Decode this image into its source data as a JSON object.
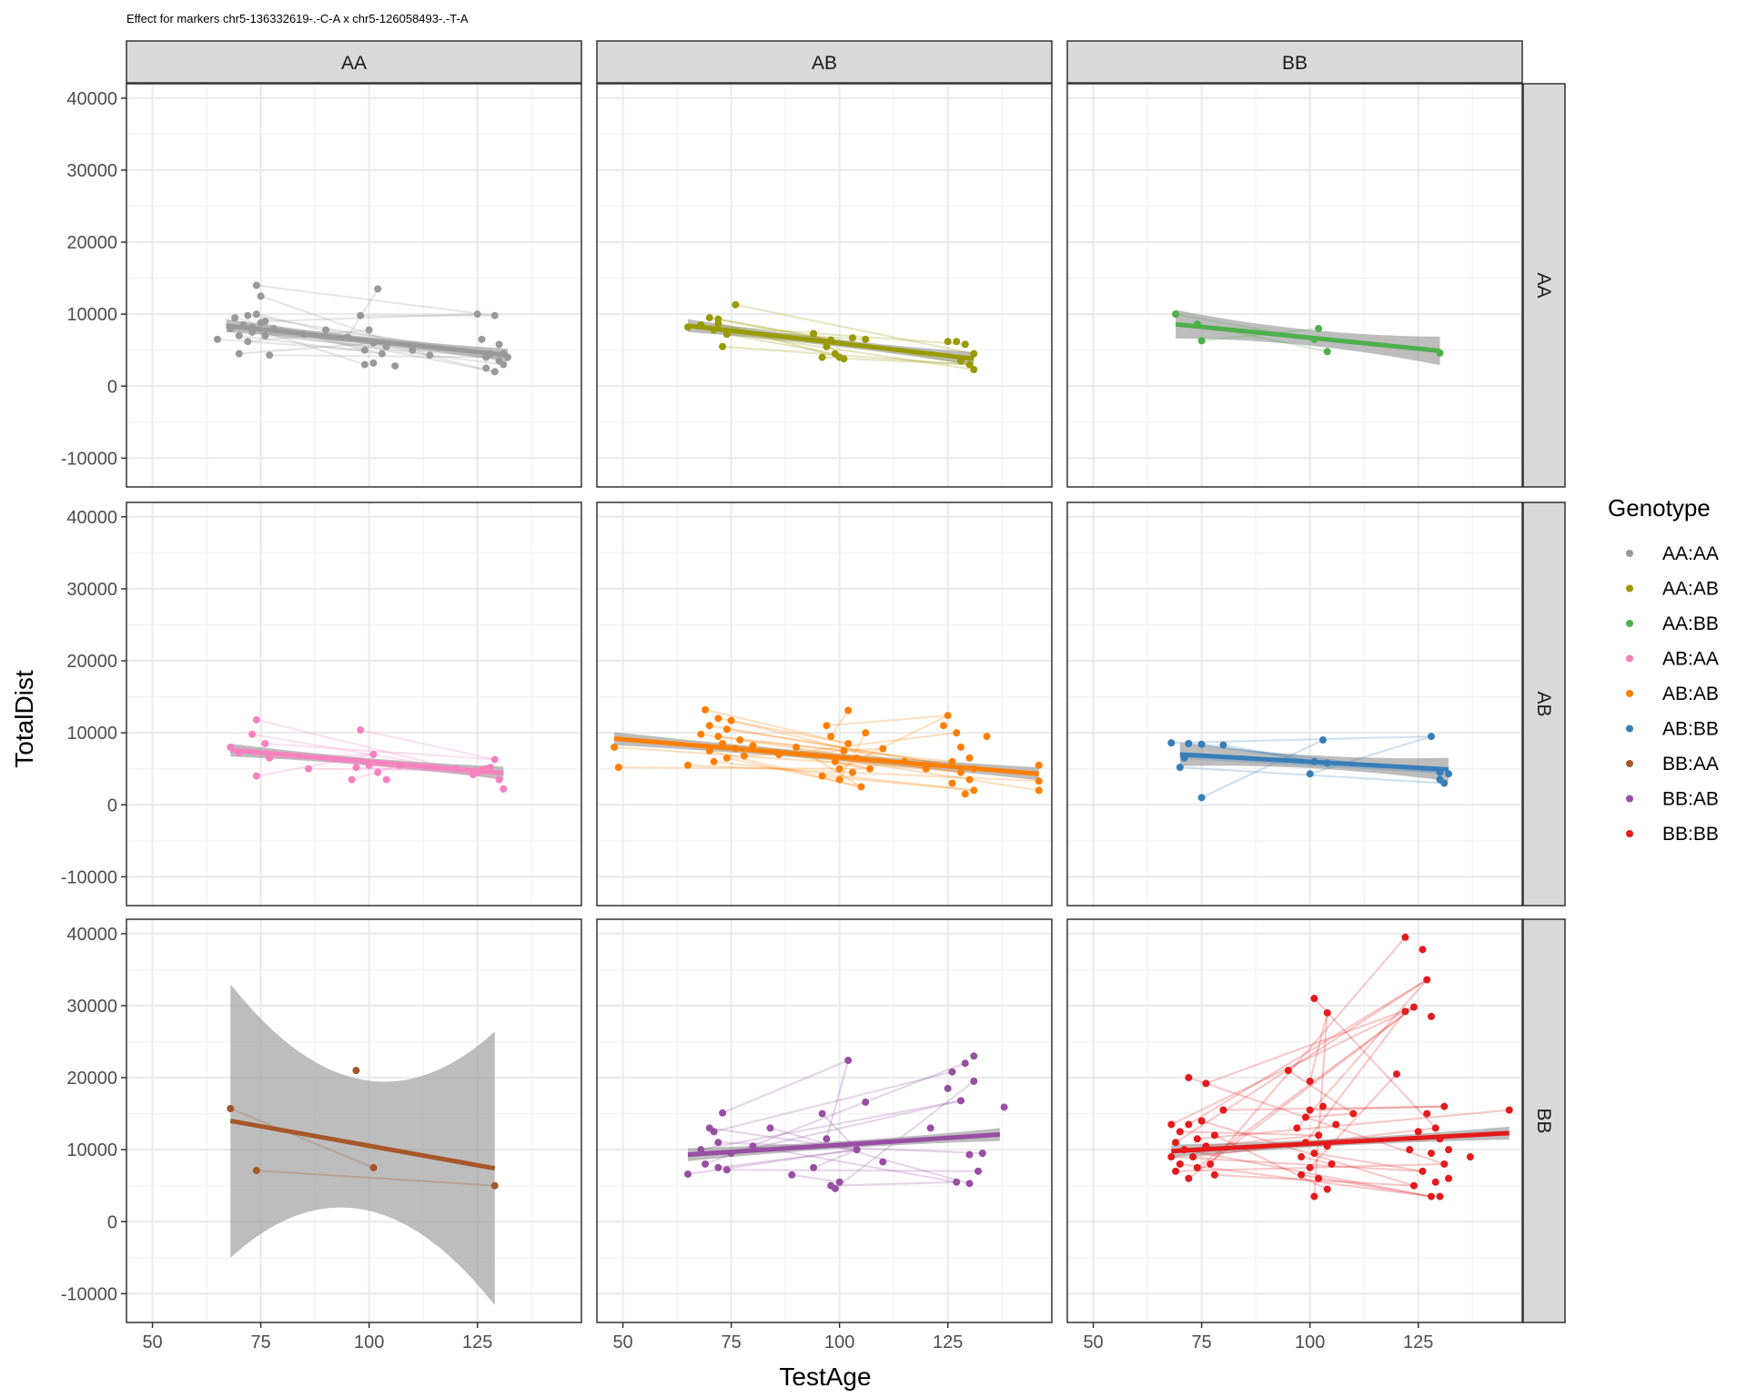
{
  "chart_data": {
    "type": "scatter",
    "title": "Effect for markers chr5-136332619-.-C-A x chr5-126058493-.-T-A",
    "xlabel": "TestAge",
    "ylabel": "TotalDist",
    "xlim": [
      44,
      149
    ],
    "ylim": [
      -14000,
      42000
    ],
    "x_ticks": [
      50,
      75,
      100,
      125
    ],
    "y_ticks": [
      -10000,
      0,
      10000,
      20000,
      30000,
      40000
    ],
    "grid": true,
    "legend": {
      "title": "Genotype",
      "position": "right"
    },
    "col_facets": [
      "AA",
      "AB",
      "BB"
    ],
    "row_facets": [
      "AA",
      "AB",
      "BB"
    ],
    "series": [
      {
        "name": "AA:AA",
        "color": "#999999",
        "row": 0,
        "col": 0,
        "points": [
          [
            65,
            6500
          ],
          [
            68,
            8000
          ],
          [
            69,
            9500
          ],
          [
            70,
            7000
          ],
          [
            71,
            8500
          ],
          [
            72,
            9800
          ],
          [
            72,
            6200
          ],
          [
            73,
            8200
          ],
          [
            74,
            14000
          ],
          [
            74,
            10000
          ],
          [
            75,
            12500
          ],
          [
            75,
            8800
          ],
          [
            76,
            9000
          ],
          [
            77,
            4300
          ],
          [
            78,
            8000
          ],
          [
            70,
            4500
          ],
          [
            73,
            7500
          ],
          [
            76,
            7000
          ],
          [
            85,
            7200
          ],
          [
            90,
            7800
          ],
          [
            95,
            6800
          ],
          [
            98,
            9800
          ],
          [
            99,
            5000
          ],
          [
            99,
            3000
          ],
          [
            100,
            7800
          ],
          [
            101,
            3200
          ],
          [
            101,
            6000
          ],
          [
            102,
            13500
          ],
          [
            103,
            4500
          ],
          [
            104,
            5500
          ],
          [
            106,
            2800
          ],
          [
            110,
            5000
          ],
          [
            114,
            4300
          ],
          [
            125,
            10000
          ],
          [
            126,
            6500
          ],
          [
            127,
            2500
          ],
          [
            127,
            4000
          ],
          [
            128,
            4500
          ],
          [
            129,
            9800
          ],
          [
            129,
            2000
          ],
          [
            130,
            5800
          ],
          [
            130,
            3500
          ],
          [
            131,
            4500
          ],
          [
            131,
            3000
          ],
          [
            132,
            4000
          ]
        ],
        "fit": {
          "x": [
            67,
            132
          ],
          "y": [
            8400,
            4300
          ]
        }
      },
      {
        "name": "AA:AB",
        "color": "#999900",
        "row": 0,
        "col": 1,
        "points": [
          [
            65,
            8200
          ],
          [
            68,
            8500
          ],
          [
            70,
            9500
          ],
          [
            71,
            7800
          ],
          [
            72,
            9300
          ],
          [
            72,
            8700
          ],
          [
            73,
            5500
          ],
          [
            74,
            7200
          ],
          [
            76,
            11300
          ],
          [
            94,
            7300
          ],
          [
            96,
            4000
          ],
          [
            97,
            5500
          ],
          [
            98,
            6400
          ],
          [
            99,
            4500
          ],
          [
            100,
            4000
          ],
          [
            101,
            3800
          ],
          [
            103,
            6700
          ],
          [
            106,
            6500
          ],
          [
            125,
            6200
          ],
          [
            127,
            6200
          ],
          [
            128,
            3500
          ],
          [
            129,
            5800
          ],
          [
            130,
            3000
          ],
          [
            131,
            2300
          ],
          [
            131,
            4500
          ]
        ],
        "fit": {
          "x": [
            65,
            131
          ],
          "y": [
            8400,
            3800
          ]
        }
      },
      {
        "name": "AA:BB",
        "color": "#4daf4a",
        "row": 0,
        "col": 2,
        "points": [
          [
            69,
            10000
          ],
          [
            74,
            8600
          ],
          [
            75,
            6300
          ],
          [
            101,
            6500
          ],
          [
            102,
            8000
          ],
          [
            104,
            4800
          ],
          [
            130,
            4600
          ]
        ],
        "fit": {
          "x": [
            69,
            130
          ],
          "y": [
            8600,
            4900
          ]
        }
      },
      {
        "name": "AB:AA",
        "color": "#f781bf",
        "row": 1,
        "col": 0,
        "points": [
          [
            68,
            8000
          ],
          [
            70,
            7200
          ],
          [
            73,
            9800
          ],
          [
            74,
            11800
          ],
          [
            74,
            4000
          ],
          [
            76,
            8500
          ],
          [
            77,
            6500
          ],
          [
            86,
            5000
          ],
          [
            96,
            3500
          ],
          [
            97,
            5200
          ],
          [
            98,
            10400
          ],
          [
            100,
            5500
          ],
          [
            101,
            7000
          ],
          [
            102,
            4500
          ],
          [
            104,
            3500
          ],
          [
            107,
            5500
          ],
          [
            120,
            5000
          ],
          [
            124,
            4200
          ],
          [
            125,
            4500
          ],
          [
            126,
            4800
          ],
          [
            127,
            5000
          ],
          [
            128,
            5200
          ],
          [
            129,
            6300
          ],
          [
            130,
            3500
          ],
          [
            131,
            2200
          ]
        ],
        "fit": {
          "x": [
            68,
            131
          ],
          "y": [
            7600,
            4400
          ]
        }
      },
      {
        "name": "AB:AB",
        "color": "#ff7f00",
        "row": 1,
        "col": 1,
        "points": [
          [
            48,
            8000
          ],
          [
            49,
            5200
          ],
          [
            65,
            5500
          ],
          [
            68,
            9800
          ],
          [
            69,
            13200
          ],
          [
            70,
            7500
          ],
          [
            70,
            11000
          ],
          [
            71,
            6000
          ],
          [
            72,
            9500
          ],
          [
            72,
            12000
          ],
          [
            73,
            8500
          ],
          [
            74,
            10500
          ],
          [
            74,
            6500
          ],
          [
            75,
            11700
          ],
          [
            76,
            7800
          ],
          [
            77,
            9000
          ],
          [
            78,
            6800
          ],
          [
            80,
            8200
          ],
          [
            86,
            7000
          ],
          [
            90,
            8000
          ],
          [
            96,
            4000
          ],
          [
            97,
            11000
          ],
          [
            98,
            9500
          ],
          [
            99,
            6000
          ],
          [
            100,
            5000
          ],
          [
            100,
            3500
          ],
          [
            101,
            7500
          ],
          [
            102,
            13100
          ],
          [
            102,
            8500
          ],
          [
            103,
            4500
          ],
          [
            104,
            6500
          ],
          [
            105,
            2500
          ],
          [
            106,
            10000
          ],
          [
            107,
            5000
          ],
          [
            110,
            7800
          ],
          [
            115,
            6000
          ],
          [
            120,
            5000
          ],
          [
            124,
            11000
          ],
          [
            125,
            12400
          ],
          [
            126,
            6000
          ],
          [
            126,
            3000
          ],
          [
            127,
            10000
          ],
          [
            128,
            4500
          ],
          [
            128,
            8000
          ],
          [
            129,
            1500
          ],
          [
            130,
            6500
          ],
          [
            130,
            3500
          ],
          [
            131,
            2000
          ],
          [
            131,
            5000
          ],
          [
            134,
            9500
          ],
          [
            146,
            5500
          ],
          [
            146,
            3300
          ],
          [
            146,
            2000
          ]
        ],
        "fit": {
          "x": [
            48,
            146
          ],
          "y": [
            9200,
            4300
          ]
        }
      },
      {
        "name": "AB:BB",
        "color": "#377eb8",
        "row": 1,
        "col": 2,
        "points": [
          [
            68,
            8600
          ],
          [
            70,
            5200
          ],
          [
            71,
            6500
          ],
          [
            72,
            8500
          ],
          [
            75,
            8400
          ],
          [
            75,
            1000
          ],
          [
            80,
            8300
          ],
          [
            100,
            4300
          ],
          [
            101,
            6000
          ],
          [
            103,
            9000
          ],
          [
            104,
            5800
          ],
          [
            128,
            9500
          ],
          [
            130,
            4500
          ],
          [
            130,
            3500
          ],
          [
            131,
            3000
          ],
          [
            132,
            4300
          ]
        ],
        "fit": {
          "x": [
            70,
            132
          ],
          "y": [
            7000,
            4900
          ]
        }
      },
      {
        "name": "BB:AA",
        "color": "#a65628",
        "row": 2,
        "col": 0,
        "points": [
          [
            68,
            15700
          ],
          [
            74,
            7100
          ],
          [
            97,
            21000
          ],
          [
            101,
            7500
          ],
          [
            129,
            5000
          ]
        ],
        "fit": {
          "x": [
            68,
            129
          ],
          "y": [
            14000,
            7400
          ]
        }
      },
      {
        "name": "BB:AB",
        "color": "#984ea3",
        "row": 2,
        "col": 1,
        "points": [
          [
            65,
            6600
          ],
          [
            68,
            10000
          ],
          [
            69,
            8000
          ],
          [
            70,
            13000
          ],
          [
            71,
            12500
          ],
          [
            72,
            11000
          ],
          [
            72,
            7500
          ],
          [
            73,
            15100
          ],
          [
            74,
            7200
          ],
          [
            75,
            9500
          ],
          [
            80,
            10500
          ],
          [
            84,
            13000
          ],
          [
            89,
            6500
          ],
          [
            94,
            7500
          ],
          [
            96,
            15000
          ],
          [
            97,
            11500
          ],
          [
            98,
            5000
          ],
          [
            99,
            4600
          ],
          [
            100,
            5500
          ],
          [
            102,
            22400
          ],
          [
            104,
            10000
          ],
          [
            106,
            16600
          ],
          [
            110,
            8300
          ],
          [
            121,
            13000
          ],
          [
            125,
            18500
          ],
          [
            126,
            20800
          ],
          [
            127,
            5500
          ],
          [
            128,
            16800
          ],
          [
            129,
            22000
          ],
          [
            130,
            5300
          ],
          [
            130,
            9300
          ],
          [
            131,
            23000
          ],
          [
            131,
            19500
          ],
          [
            132,
            7000
          ],
          [
            133,
            9500
          ],
          [
            138,
            15900
          ]
        ],
        "fit": {
          "x": [
            65,
            137
          ],
          "y": [
            9300,
            12100
          ]
        }
      },
      {
        "name": "BB:BB",
        "color": "#e41a1c",
        "row": 2,
        "col": 2,
        "points": [
          [
            68,
            13500
          ],
          [
            68,
            9000
          ],
          [
            69,
            11000
          ],
          [
            69,
            7000
          ],
          [
            70,
            12500
          ],
          [
            70,
            8000
          ],
          [
            71,
            10000
          ],
          [
            72,
            20000
          ],
          [
            72,
            13500
          ],
          [
            72,
            6000
          ],
          [
            73,
            9000
          ],
          [
            74,
            11500
          ],
          [
            74,
            7500
          ],
          [
            75,
            14000
          ],
          [
            76,
            19200
          ],
          [
            76,
            10500
          ],
          [
            77,
            8000
          ],
          [
            78,
            12000
          ],
          [
            78,
            6500
          ],
          [
            80,
            15500
          ],
          [
            95,
            21000
          ],
          [
            97,
            13000
          ],
          [
            98,
            9000
          ],
          [
            98,
            6500
          ],
          [
            99,
            14500
          ],
          [
            99,
            11000
          ],
          [
            100,
            19500
          ],
          [
            100,
            15500
          ],
          [
            100,
            7500
          ],
          [
            101,
            31000
          ],
          [
            101,
            9500
          ],
          [
            101,
            3500
          ],
          [
            102,
            12000
          ],
          [
            102,
            6000
          ],
          [
            103,
            16000
          ],
          [
            104,
            29000
          ],
          [
            104,
            10500
          ],
          [
            104,
            4500
          ],
          [
            105,
            8000
          ],
          [
            106,
            13500
          ],
          [
            110,
            15000
          ],
          [
            120,
            20500
          ],
          [
            122,
            29200
          ],
          [
            122,
            39500
          ],
          [
            123,
            10000
          ],
          [
            124,
            29800
          ],
          [
            124,
            5000
          ],
          [
            125,
            12500
          ],
          [
            126,
            37800
          ],
          [
            126,
            7000
          ],
          [
            127,
            33600
          ],
          [
            127,
            15000
          ],
          [
            128,
            28500
          ],
          [
            128,
            9500
          ],
          [
            128,
            3500
          ],
          [
            129,
            13000
          ],
          [
            129,
            5500
          ],
          [
            130,
            11500
          ],
          [
            130,
            3500
          ],
          [
            131,
            8000
          ],
          [
            131,
            16000
          ],
          [
            132,
            6000
          ],
          [
            132,
            10000
          ],
          [
            137,
            9000
          ],
          [
            146,
            15500
          ]
        ],
        "fit": {
          "x": [
            68,
            146
          ],
          "y": [
            9800,
            12300
          ]
        }
      }
    ]
  }
}
